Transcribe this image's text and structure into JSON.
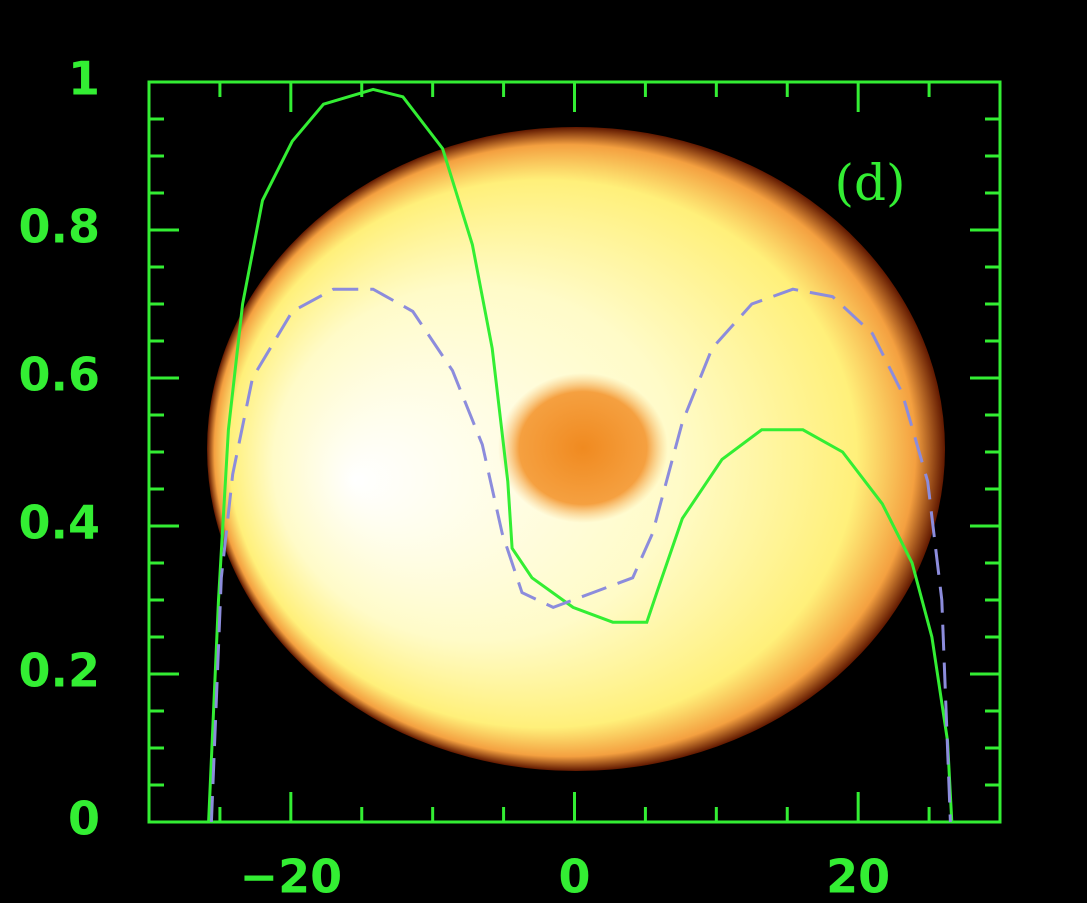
{
  "chart_data": {
    "type": "line",
    "annotation": "(d)",
    "xlim": [
      -30,
      30
    ],
    "ylim": [
      0,
      1
    ],
    "xticks": [
      {
        "value": -20,
        "label": "−20"
      },
      0,
      20
    ],
    "yticks": [
      0,
      0.2,
      0.4,
      0.6,
      0.8,
      1
    ],
    "xminorticks": [
      -25,
      -15,
      -10,
      -5,
      5,
      10,
      15,
      25
    ],
    "yminorticks": [
      0.05,
      0.1,
      0.15,
      0.25,
      0.3,
      0.35,
      0.45,
      0.5,
      0.55,
      0.65,
      0.7,
      0.75,
      0.85,
      0.9,
      0.95
    ],
    "axis_color": "#33ee33",
    "series": [
      {
        "color": "#33ee33",
        "dash": false,
        "x": [
          -30,
          -25.8,
          -25.1,
          -24.4,
          -23.4,
          -22.0,
          -19.9,
          -17.7,
          -14.2,
          -12.1,
          -9.3,
          -7.2,
          -5.8,
          -4.7,
          -4.4,
          -3.0,
          -0.1,
          2.7,
          5.1,
          5.8,
          7.6,
          10.4,
          13.2,
          16.1,
          18.9,
          21.7,
          23.8,
          25.2,
          26.3,
          26.6,
          30
        ],
        "values": [
          0,
          0,
          0.3,
          0.53,
          0.7,
          0.84,
          0.92,
          0.97,
          0.99,
          0.98,
          0.91,
          0.78,
          0.64,
          0.46,
          0.37,
          0.33,
          0.29,
          0.27,
          0.27,
          0.31,
          0.41,
          0.49,
          0.53,
          0.53,
          0.5,
          0.43,
          0.35,
          0.25,
          0.11,
          0,
          0
        ]
      },
      {
        "color": "#8c8cdc",
        "dash": true,
        "x": [
          -25.6,
          -24.9,
          -24.1,
          -22.7,
          -19.9,
          -17.0,
          -14.2,
          -11.4,
          -8.6,
          -6.5,
          -5.1,
          -3.7,
          -1.5,
          1.3,
          4.1,
          5.5,
          7.6,
          9.7,
          12.5,
          15.4,
          18.2,
          21.0,
          23.1,
          24.9,
          25.9,
          26.5
        ],
        "values": [
          0,
          0.33,
          0.47,
          0.6,
          0.69,
          0.72,
          0.72,
          0.69,
          0.61,
          0.51,
          0.39,
          0.31,
          0.29,
          0.31,
          0.33,
          0.39,
          0.54,
          0.64,
          0.7,
          0.72,
          0.71,
          0.66,
          0.58,
          0.46,
          0.3,
          0
        ]
      }
    ]
  }
}
